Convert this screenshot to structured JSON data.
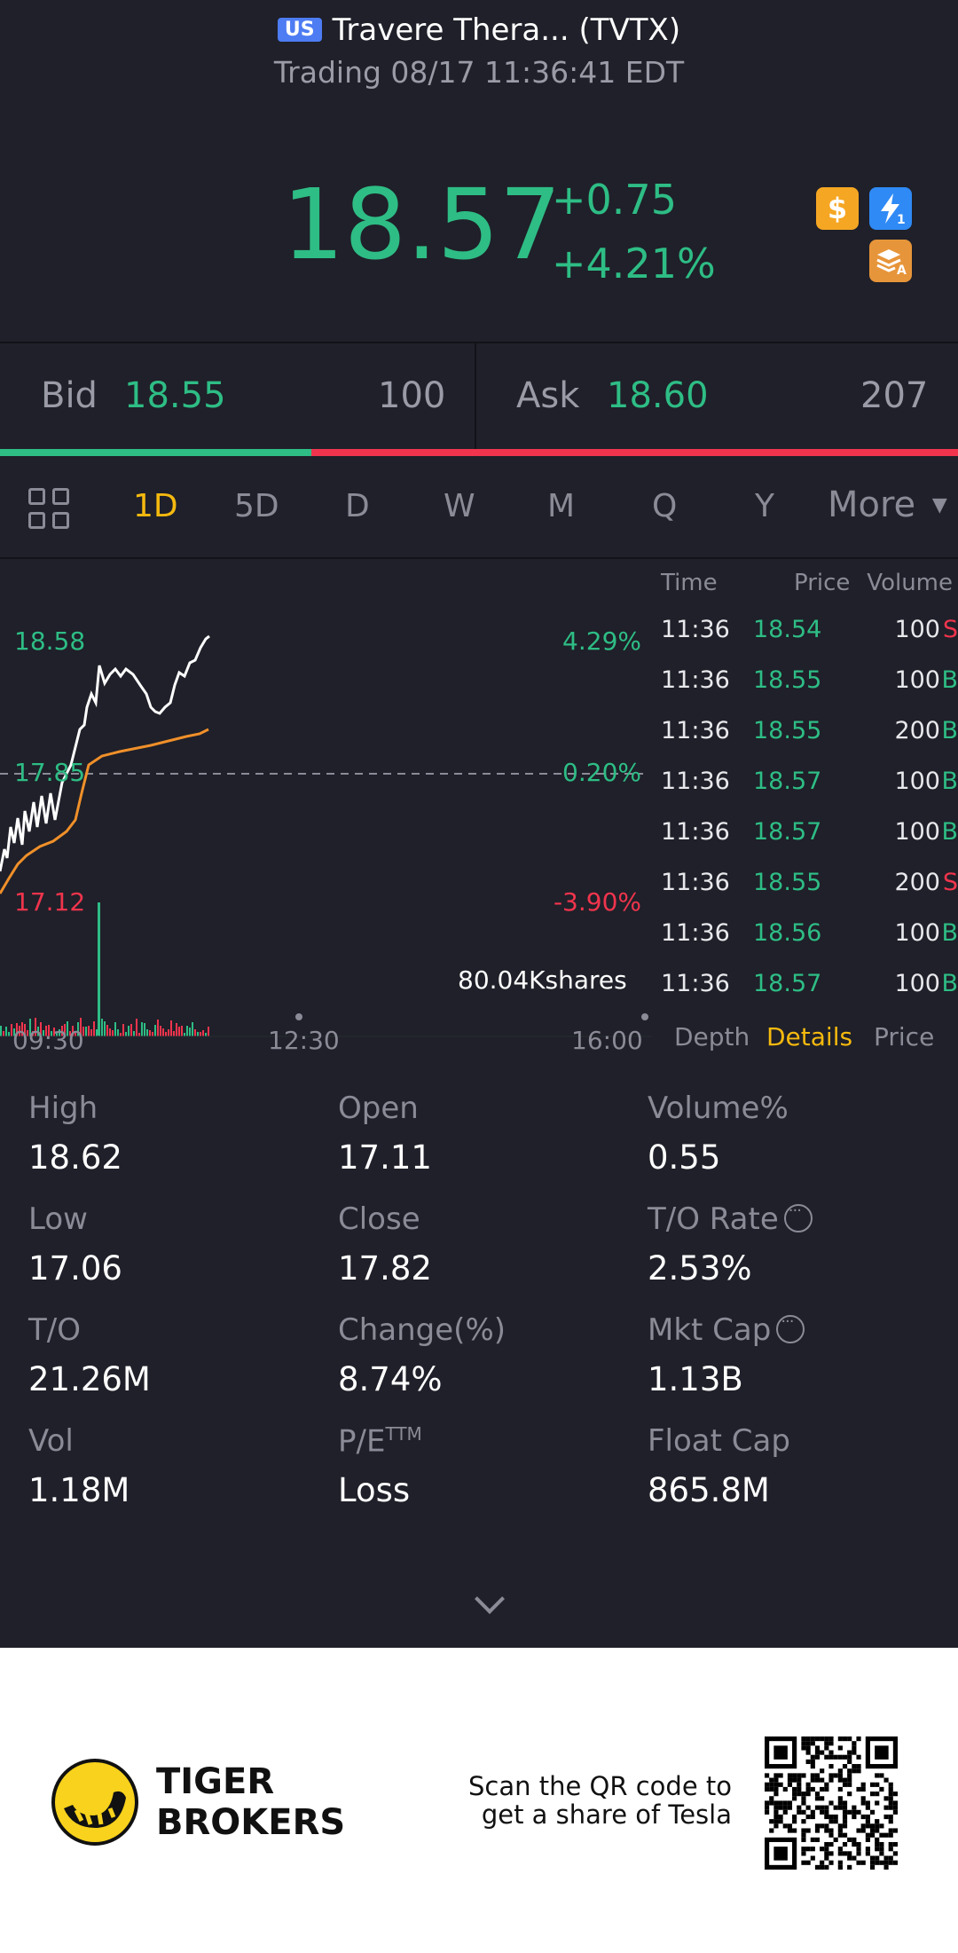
{
  "header": {
    "market_badge": "US",
    "title": "Travere Thera... (TVTX)",
    "subtitle": "Trading 08/17 11:36:41 EDT",
    "price": "18.57",
    "change": "+0.75",
    "change_pct": "+4.21%",
    "icons": [
      "dollar-icon",
      "lightning-icon",
      "stack-icon"
    ],
    "icon_text": {
      "dollar": "$",
      "bolt": "⚡"
    }
  },
  "bidask": {
    "bid_label": "Bid",
    "bid_price": "18.55",
    "bid_qty": "100",
    "ask_label": "Ask",
    "ask_price": "18.60",
    "ask_qty": "207",
    "bid_ratio": 0.325
  },
  "tabs": {
    "items": [
      "1D",
      "5D",
      "D",
      "W",
      "M",
      "Q",
      "Y",
      "More"
    ],
    "active": "1D"
  },
  "chart": {
    "high_label": "18.58",
    "mid_label": "17.85",
    "low_label": "17.12",
    "high_pct": "4.29%",
    "mid_pct": "0.20%",
    "low_pct": "-3.90%",
    "volume_label": "80.04Kshares",
    "x_labels": [
      "09:30",
      "12:30",
      "16:00"
    ]
  },
  "chart_data": {
    "type": "line",
    "series": [],
    "x_range": [
      "09:30",
      "16:00"
    ],
    "ylim": [
      17.12,
      18.58
    ],
    "reference": 17.85
  },
  "trades": {
    "headers": {
      "time": "Time",
      "price": "Price",
      "volume": "Volume"
    },
    "rows": [
      {
        "time": "11:36",
        "price": "18.54",
        "volume": "100",
        "side": "S"
      },
      {
        "time": "11:36",
        "price": "18.55",
        "volume": "100",
        "side": "B"
      },
      {
        "time": "11:36",
        "price": "18.55",
        "volume": "200",
        "side": "B"
      },
      {
        "time": "11:36",
        "price": "18.57",
        "volume": "100",
        "side": "B"
      },
      {
        "time": "11:36",
        "price": "18.57",
        "volume": "100",
        "side": "B"
      },
      {
        "time": "11:36",
        "price": "18.55",
        "volume": "200",
        "side": "S"
      },
      {
        "time": "11:36",
        "price": "18.56",
        "volume": "100",
        "side": "B"
      },
      {
        "time": "11:36",
        "price": "18.57",
        "volume": "100",
        "side": "B"
      }
    ],
    "bottom_tabs": [
      "Depth",
      "Details",
      "Price"
    ],
    "active_tab": "Details"
  },
  "stats": [
    {
      "label": "High",
      "value": "18.62"
    },
    {
      "label": "Open",
      "value": "17.11"
    },
    {
      "label": "Volume%",
      "value": "0.55"
    },
    {
      "label": "Low",
      "value": "17.06"
    },
    {
      "label": "Close",
      "value": "17.82"
    },
    {
      "label": "T/O Rate",
      "value": "2.53%"
    },
    {
      "label": "T/O",
      "value": "21.26M"
    },
    {
      "label": "Change(%)",
      "value": "8.74%"
    },
    {
      "label": "Mkt Cap",
      "value": "1.13B"
    },
    {
      "label": "Vol",
      "value": "1.18M"
    },
    {
      "label": "P/E",
      "label_sup": "TTM",
      "value": "Loss"
    },
    {
      "label": "Float Cap",
      "value": "865.8M"
    }
  ],
  "footer": {
    "brand_line1": "TIGER",
    "brand_line2": "BROKERS",
    "scan_line1": "Scan the QR code to",
    "scan_line2": "get a share of Tesla"
  },
  "colors": {
    "up": "#2ebd85",
    "down": "#f0344d",
    "accent": "#f5b90f",
    "bg": "#1f2029"
  }
}
